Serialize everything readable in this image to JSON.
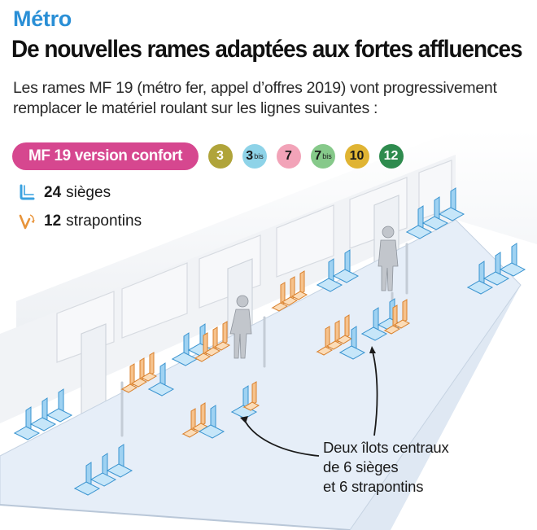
{
  "header": {
    "kicker": "Métro",
    "title": "De nouvelles rames adaptées aux fortes affluences",
    "intro": "Les rames MF 19 (métro fer, appel d’offres 2019) vont progressivement remplacer le matériel roulant sur les lignes suivantes :"
  },
  "version": {
    "label": "MF 19 version confort",
    "color": "#d6478f"
  },
  "lines": [
    {
      "number": "3",
      "suffix": "",
      "color": "#b0a43a",
      "text_color": "#ffffff"
    },
    {
      "number": "3",
      "suffix": "bis",
      "color": "#8ed3e8",
      "text_color": "#1a1a1a"
    },
    {
      "number": "7",
      "suffix": "",
      "color": "#f2a3b8",
      "text_color": "#1a1a1a"
    },
    {
      "number": "7",
      "suffix": "bis",
      "color": "#86c98a",
      "text_color": "#1a1a1a"
    },
    {
      "number": "10",
      "suffix": "",
      "color": "#e0b433",
      "text_color": "#1a1a1a"
    },
    {
      "number": "12",
      "suffix": "",
      "color": "#2e8b4e",
      "text_color": "#ffffff"
    }
  ],
  "legend": {
    "seats": {
      "count": "24",
      "label": "sièges",
      "icon": "seat-icon",
      "color": "#3aa2e0"
    },
    "folding": {
      "count": "12",
      "label": "strapontins",
      "icon": "folding-seat-icon",
      "color": "#e8943a"
    }
  },
  "callout": {
    "lines": [
      "Deux îlots centraux",
      "de 6 sièges",
      "et 6 strapontins"
    ]
  }
}
